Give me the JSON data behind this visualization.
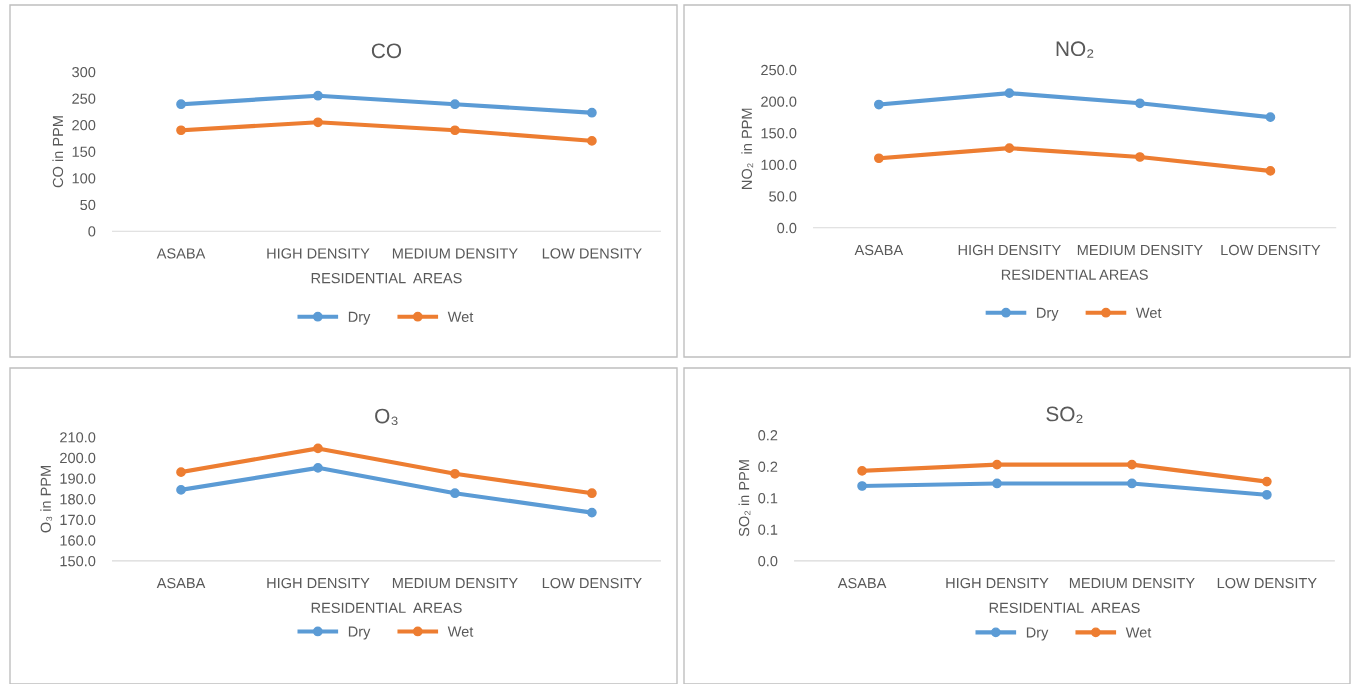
{
  "chart_data": [
    {
      "type": "line",
      "title": "CO",
      "xlabel": "RESIDENTIAL  AREAS",
      "ylabel": "CO in PPM",
      "categories": [
        "ASABA",
        "HIGH DENSITY",
        "MEDIUM DENSITY",
        "LOW DENSITY"
      ],
      "series": [
        {
          "name": "Dry",
          "color": "#5b9bd5",
          "values": [
            239,
            255,
            239,
            223
          ]
        },
        {
          "name": "Wet",
          "color": "#ed7d31",
          "values": [
            190,
            205,
            190,
            170
          ]
        }
      ],
      "ylim": [
        0,
        300
      ],
      "yticks": [
        0,
        50,
        100,
        150,
        200,
        250,
        300
      ],
      "grid": false,
      "legend": "bottom",
      "marker": "circle",
      "line_style": "solid"
    },
    {
      "type": "line",
      "title": "NO₂",
      "xlabel": "RESIDENTIAL AREAS",
      "ylabel": "NO₂  in PPM",
      "categories": [
        "ASABA",
        "HIGH DENSITY",
        "MEDIUM DENSITY",
        "LOW DENSITY"
      ],
      "series": [
        {
          "name": "Dry",
          "color": "#5b9bd5",
          "values": [
            195,
            213,
            197,
            175
          ]
        },
        {
          "name": "Wet",
          "color": "#ed7d31",
          "values": [
            110,
            126,
            112,
            90
          ]
        }
      ],
      "ylim": [
        0,
        250
      ],
      "yticks": [
        {
          "value": 0,
          "label": "0.0"
        },
        {
          "value": 50,
          "label": "50.0"
        },
        {
          "value": 100,
          "label": "100.0"
        },
        {
          "value": 150,
          "label": "150.0"
        },
        {
          "value": 200,
          "label": "200.0"
        },
        {
          "value": 250,
          "label": "250.0"
        }
      ],
      "grid": false,
      "legend": "bottom",
      "marker": "circle",
      "line_style": "solid"
    },
    {
      "type": "line",
      "title": "O₃",
      "xlabel": "RESIDENTIAL  AREAS",
      "ylabel": "O₃ in PPM",
      "categories": [
        "ASABA",
        "HIGH DENSITY",
        "MEDIUM DENSITY",
        "LOW DENSITY"
      ],
      "series": [
        {
          "name": "Dry",
          "color": "#5b9bd5",
          "values": [
            184.4,
            195.1,
            182.8,
            173.4
          ]
        },
        {
          "name": "Wet",
          "color": "#ed7d31",
          "values": [
            193,
            204.5,
            192.2,
            182.8
          ]
        }
      ],
      "ylim": [
        150,
        210
      ],
      "yticks": [
        {
          "value": 150,
          "label": "150.0"
        },
        {
          "value": 160,
          "label": "160.0"
        },
        {
          "value": 170,
          "label": "170.0"
        },
        {
          "value": 180,
          "label": "180.0"
        },
        {
          "value": 190,
          "label": "190.0"
        },
        {
          "value": 200,
          "label": "200.0"
        },
        {
          "value": 210,
          "label": "210.0"
        }
      ],
      "grid": false,
      "legend": "bottom",
      "marker": "circle",
      "line_style": "solid"
    },
    {
      "type": "line",
      "title": "SO₂",
      "xlabel": "RESIDENTIAL  AREAS",
      "ylabel": "SO₂ in PPM",
      "categories": [
        "ASABA",
        "HIGH DENSITY",
        "MEDIUM DENSITY",
        "LOW DENSITY"
      ],
      "series": [
        {
          "name": "Dry",
          "color": "#5b9bd5",
          "values": [
            0.119,
            0.123,
            0.123,
            0.105
          ]
        },
        {
          "name": "Wet",
          "color": "#ed7d31",
          "values": [
            0.143,
            0.153,
            0.153,
            0.126
          ]
        }
      ],
      "ylim": [
        0,
        0.2
      ],
      "yticks": [
        {
          "value": 0,
          "label": "0.0"
        },
        {
          "value": 0.05,
          "label": "0.1"
        },
        {
          "value": 0.1,
          "label": "0.1"
        },
        {
          "value": 0.15,
          "label": "0.2"
        },
        {
          "value": 0.2,
          "label": "0.2"
        }
      ],
      "grid": false,
      "legend": "bottom",
      "marker": "circle",
      "line_style": "solid"
    }
  ]
}
